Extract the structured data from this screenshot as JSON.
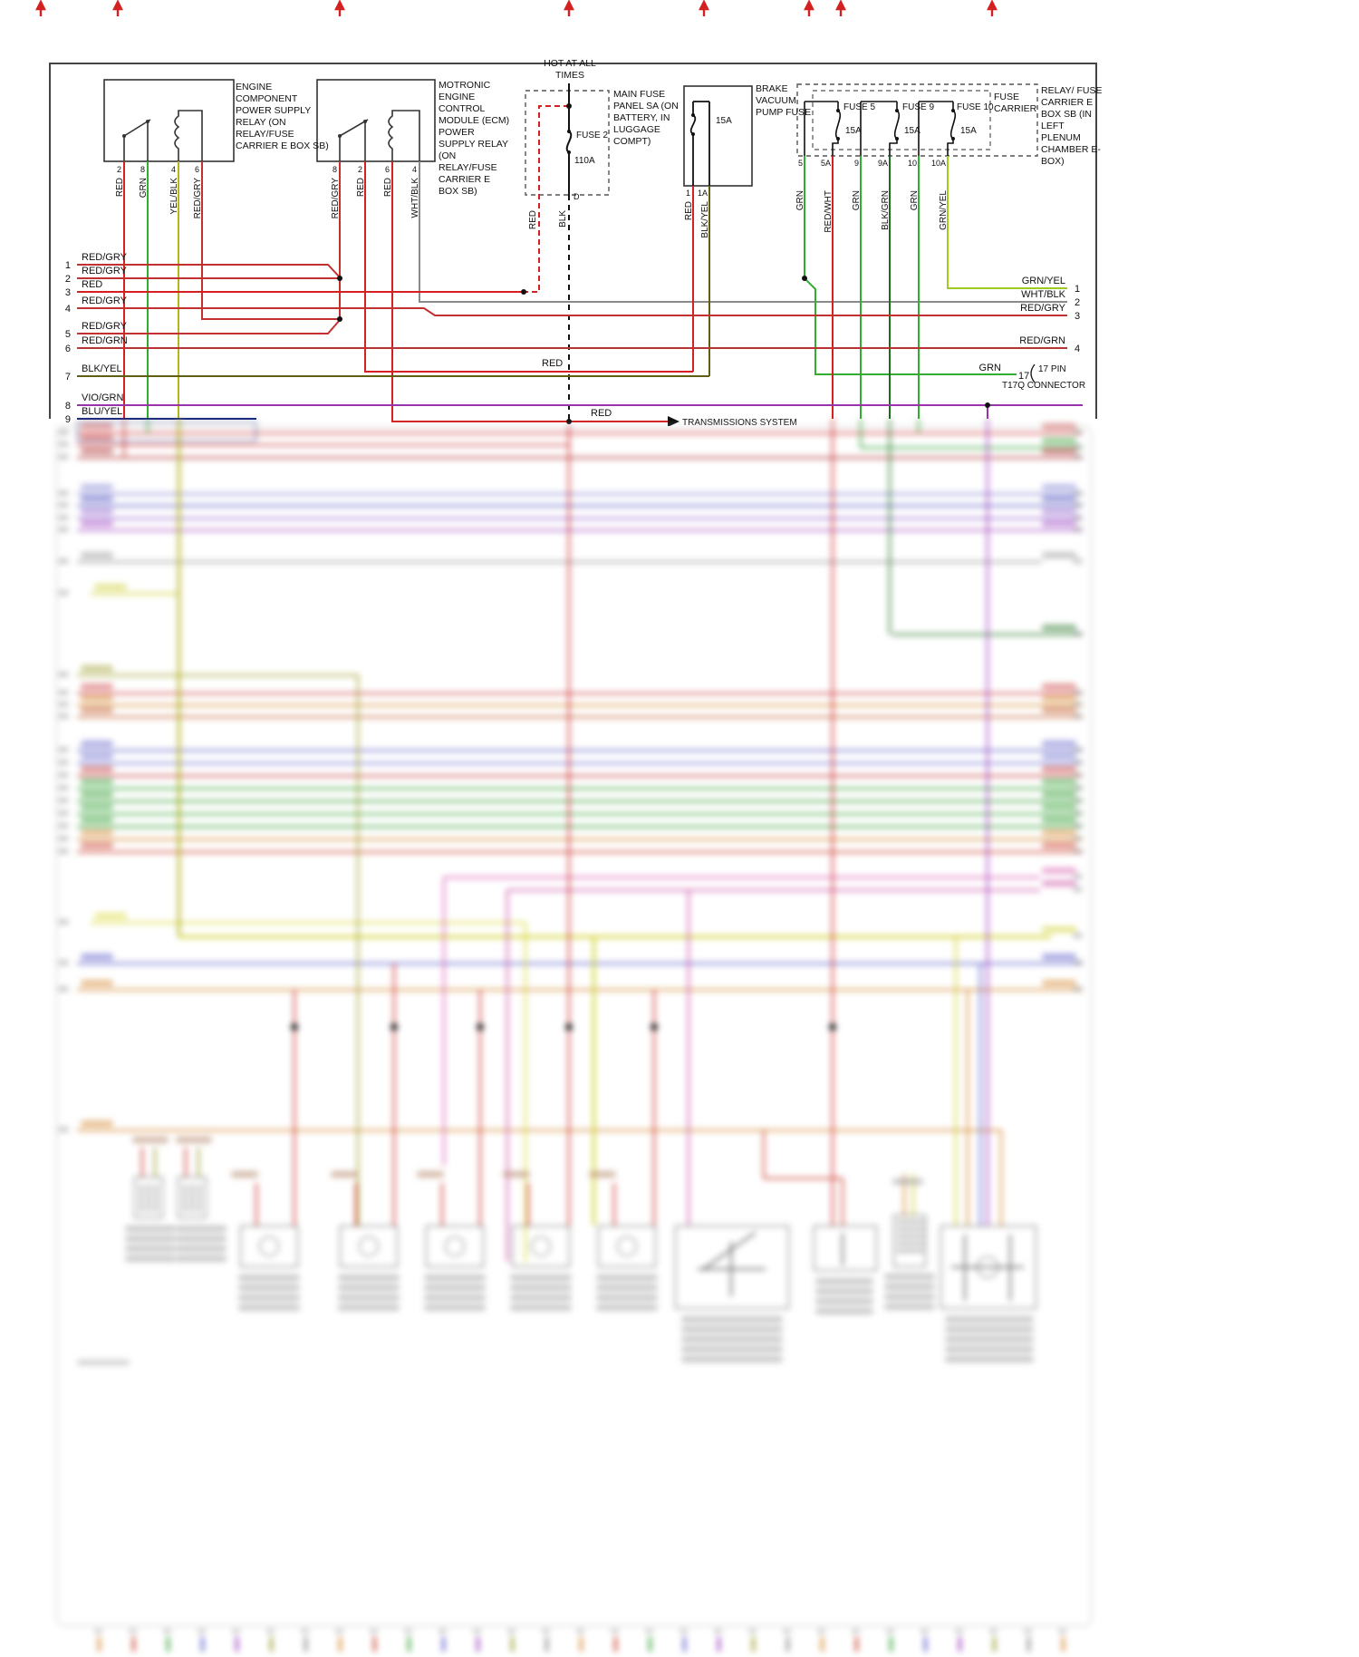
{
  "palette": {
    "red": "#d42020",
    "red_gray": "#c23030",
    "red_green": "#b93333",
    "green": "#2fae2f",
    "green_yellow": "#9ccc20",
    "dark_green": "#1d6b1d",
    "yellow_black": "#b5b520",
    "black_yellow": "#5f5f12",
    "white_black": "#8a8a8a",
    "violet_green": "#9933aa",
    "blue_yellow": "#1a2a7a",
    "black": "#111111"
  },
  "components": {
    "engine_relay": {
      "label": "ENGINE COMPONENT POWER SUPPLY RELAY (ON RELAY/FUSE CARRIER E BOX SB)",
      "pins": [
        "2",
        "8",
        "4",
        "6"
      ],
      "wires": [
        "RED",
        "GRN",
        "YEL/BLK",
        "RED/GRY"
      ]
    },
    "ecm_relay": {
      "label": "MOTRONIC ENGINE CONTROL MODULE (ECM) POWER SUPPLY RELAY (ON RELAY/FUSE CARRIER E BOX SB)",
      "pins": [
        "8",
        "2",
        "6",
        "4"
      ],
      "wires": [
        "RED/GRY",
        "RED",
        "RED",
        "WHT/BLK"
      ]
    },
    "main_fuse": {
      "hot": "HOT AT ALL TIMES",
      "label": "MAIN FUSE PANEL SA (ON BATTERY, IN LUGGAGE COMPT)",
      "fuse": "FUSE 2",
      "rating": "110A",
      "pin_d": "D",
      "wires": [
        "RED",
        "BLK"
      ]
    },
    "brake_fuse": {
      "label": "BRAKE VACUUM PUMP FUSE",
      "rating": "15A",
      "pins": [
        "1",
        "1A"
      ],
      "wires": [
        "RED",
        "BLK/YEL"
      ]
    },
    "fuse_carrier": {
      "label": "RELAY/ FUSE CARRIER E BOX SB (IN LEFT PLENUM CHAMBER E-BOX)",
      "sub": "FUSE CARRIER",
      "fuses": [
        {
          "name": "FUSE 5",
          "rating": "15A"
        },
        {
          "name": "FUSE 9",
          "rating": "15A"
        },
        {
          "name": "FUSE 10",
          "rating": "15A"
        }
      ],
      "pins": [
        "5",
        "5A",
        "9",
        "9A",
        "10",
        "10A"
      ],
      "wires": [
        "GRN",
        "RED/WHT",
        "GRN",
        "BLK/GRN",
        "GRN",
        "GRN/YEL"
      ]
    }
  },
  "left_pins": [
    {
      "n": "1",
      "label": "RED/GRY"
    },
    {
      "n": "2",
      "label": "RED/GRY"
    },
    {
      "n": "3",
      "label": "RED"
    },
    {
      "n": "4",
      "label": "RED/GRY"
    },
    {
      "n": "5",
      "label": "RED/GRY"
    },
    {
      "n": "6",
      "label": "RED/GRN"
    },
    {
      "n": "7",
      "label": "BLK/YEL"
    },
    {
      "n": "8",
      "label": "VIO/GRN"
    },
    {
      "n": "9",
      "label": "BLU/YEL"
    }
  ],
  "right_pins": [
    {
      "n": "1",
      "label": "GRN/YEL"
    },
    {
      "n": "2",
      "label": "WHT/BLK"
    },
    {
      "n": "3",
      "label": "RED/GRY"
    },
    {
      "n": "4",
      "label": "RED/GRN"
    },
    {
      "n": "17",
      "label": "GRN"
    }
  ],
  "connector": {
    "pins": "17 PIN",
    "name": "T17Q CONNECTOR"
  },
  "mid_labels": {
    "red_a": "RED",
    "red_b": "RED",
    "transmissions": "TRANSMISSIONS SYSTEM"
  }
}
